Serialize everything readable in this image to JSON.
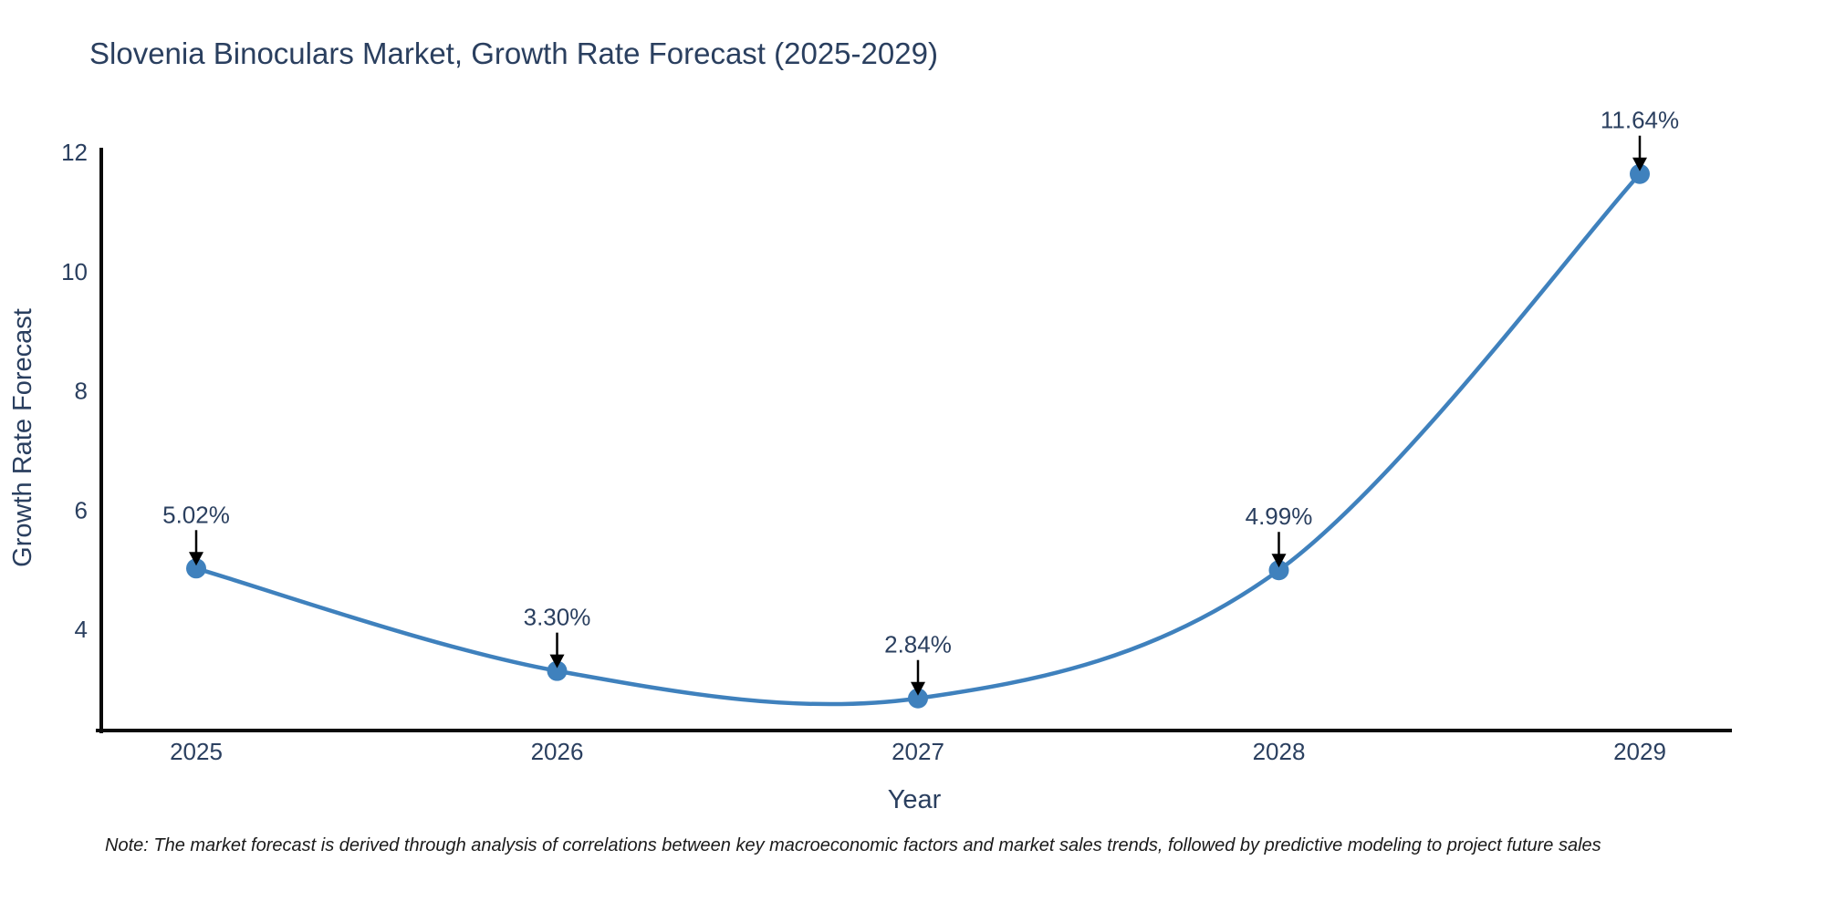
{
  "chart_data": {
    "type": "line",
    "title": "Slovenia Binoculars Market, Growth Rate Forecast (2025-2029)",
    "xlabel": "Year",
    "ylabel": "Growth Rate Forecast",
    "x": [
      2025,
      2026,
      2027,
      2028,
      2029
    ],
    "series": [
      {
        "name": "Growth Rate Forecast",
        "values": [
          5.02,
          3.3,
          2.84,
          4.99,
          11.64
        ]
      }
    ],
    "point_labels": [
      "5.02%",
      "3.30%",
      "2.84%",
      "4.99%",
      "11.64%"
    ],
    "yticks": [
      4,
      6,
      8,
      10,
      12
    ],
    "ylim": [
      2.3,
      12.08
    ],
    "grid": false,
    "legend": false,
    "line_color": "#3f81bd",
    "marker_color": "#3f81bd",
    "arrow_color": "#000000",
    "axis_color": "#0a0a0a",
    "text_color": "#2a3f5f",
    "note": "Note: The market forecast is derived through analysis of correlations between key macroeconomic factors and market sales trends, followed by predictive modeling to project future sales"
  }
}
